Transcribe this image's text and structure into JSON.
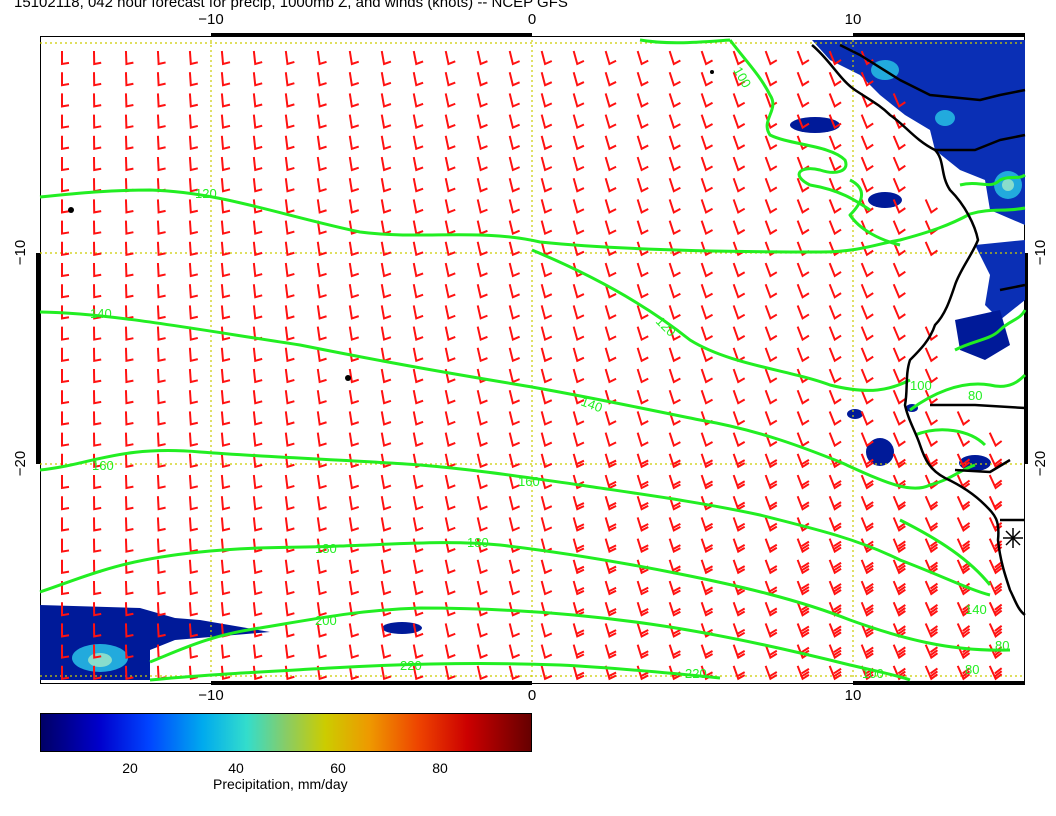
{
  "title": "15102118, 042 hour forecast for precip, 1000mb Z, and winds (knots) -- NCEP GFS",
  "axes": {
    "x_ticks_top": [
      "−10",
      "0",
      "10"
    ],
    "x_ticks_bottom": [
      "−10",
      "0",
      "10"
    ],
    "y_ticks_left": [
      "−10",
      "−20"
    ],
    "y_ticks_right": [
      "−10",
      "−20"
    ]
  },
  "contour_labels": [
    "100",
    "120",
    "140",
    "120",
    "140",
    "160",
    "160",
    "180",
    "180",
    "200",
    "220",
    "220",
    "80",
    "100",
    "100",
    "140",
    "80",
    "80"
  ],
  "colorbar": {
    "ticks": [
      "20",
      "40",
      "60",
      "80"
    ],
    "label": "Precipitation, mm/day"
  },
  "colors": {
    "contour": "#22ee22",
    "wind_barb": "#ff1111",
    "grid": "#cccc00",
    "coast": "#000000"
  }
}
